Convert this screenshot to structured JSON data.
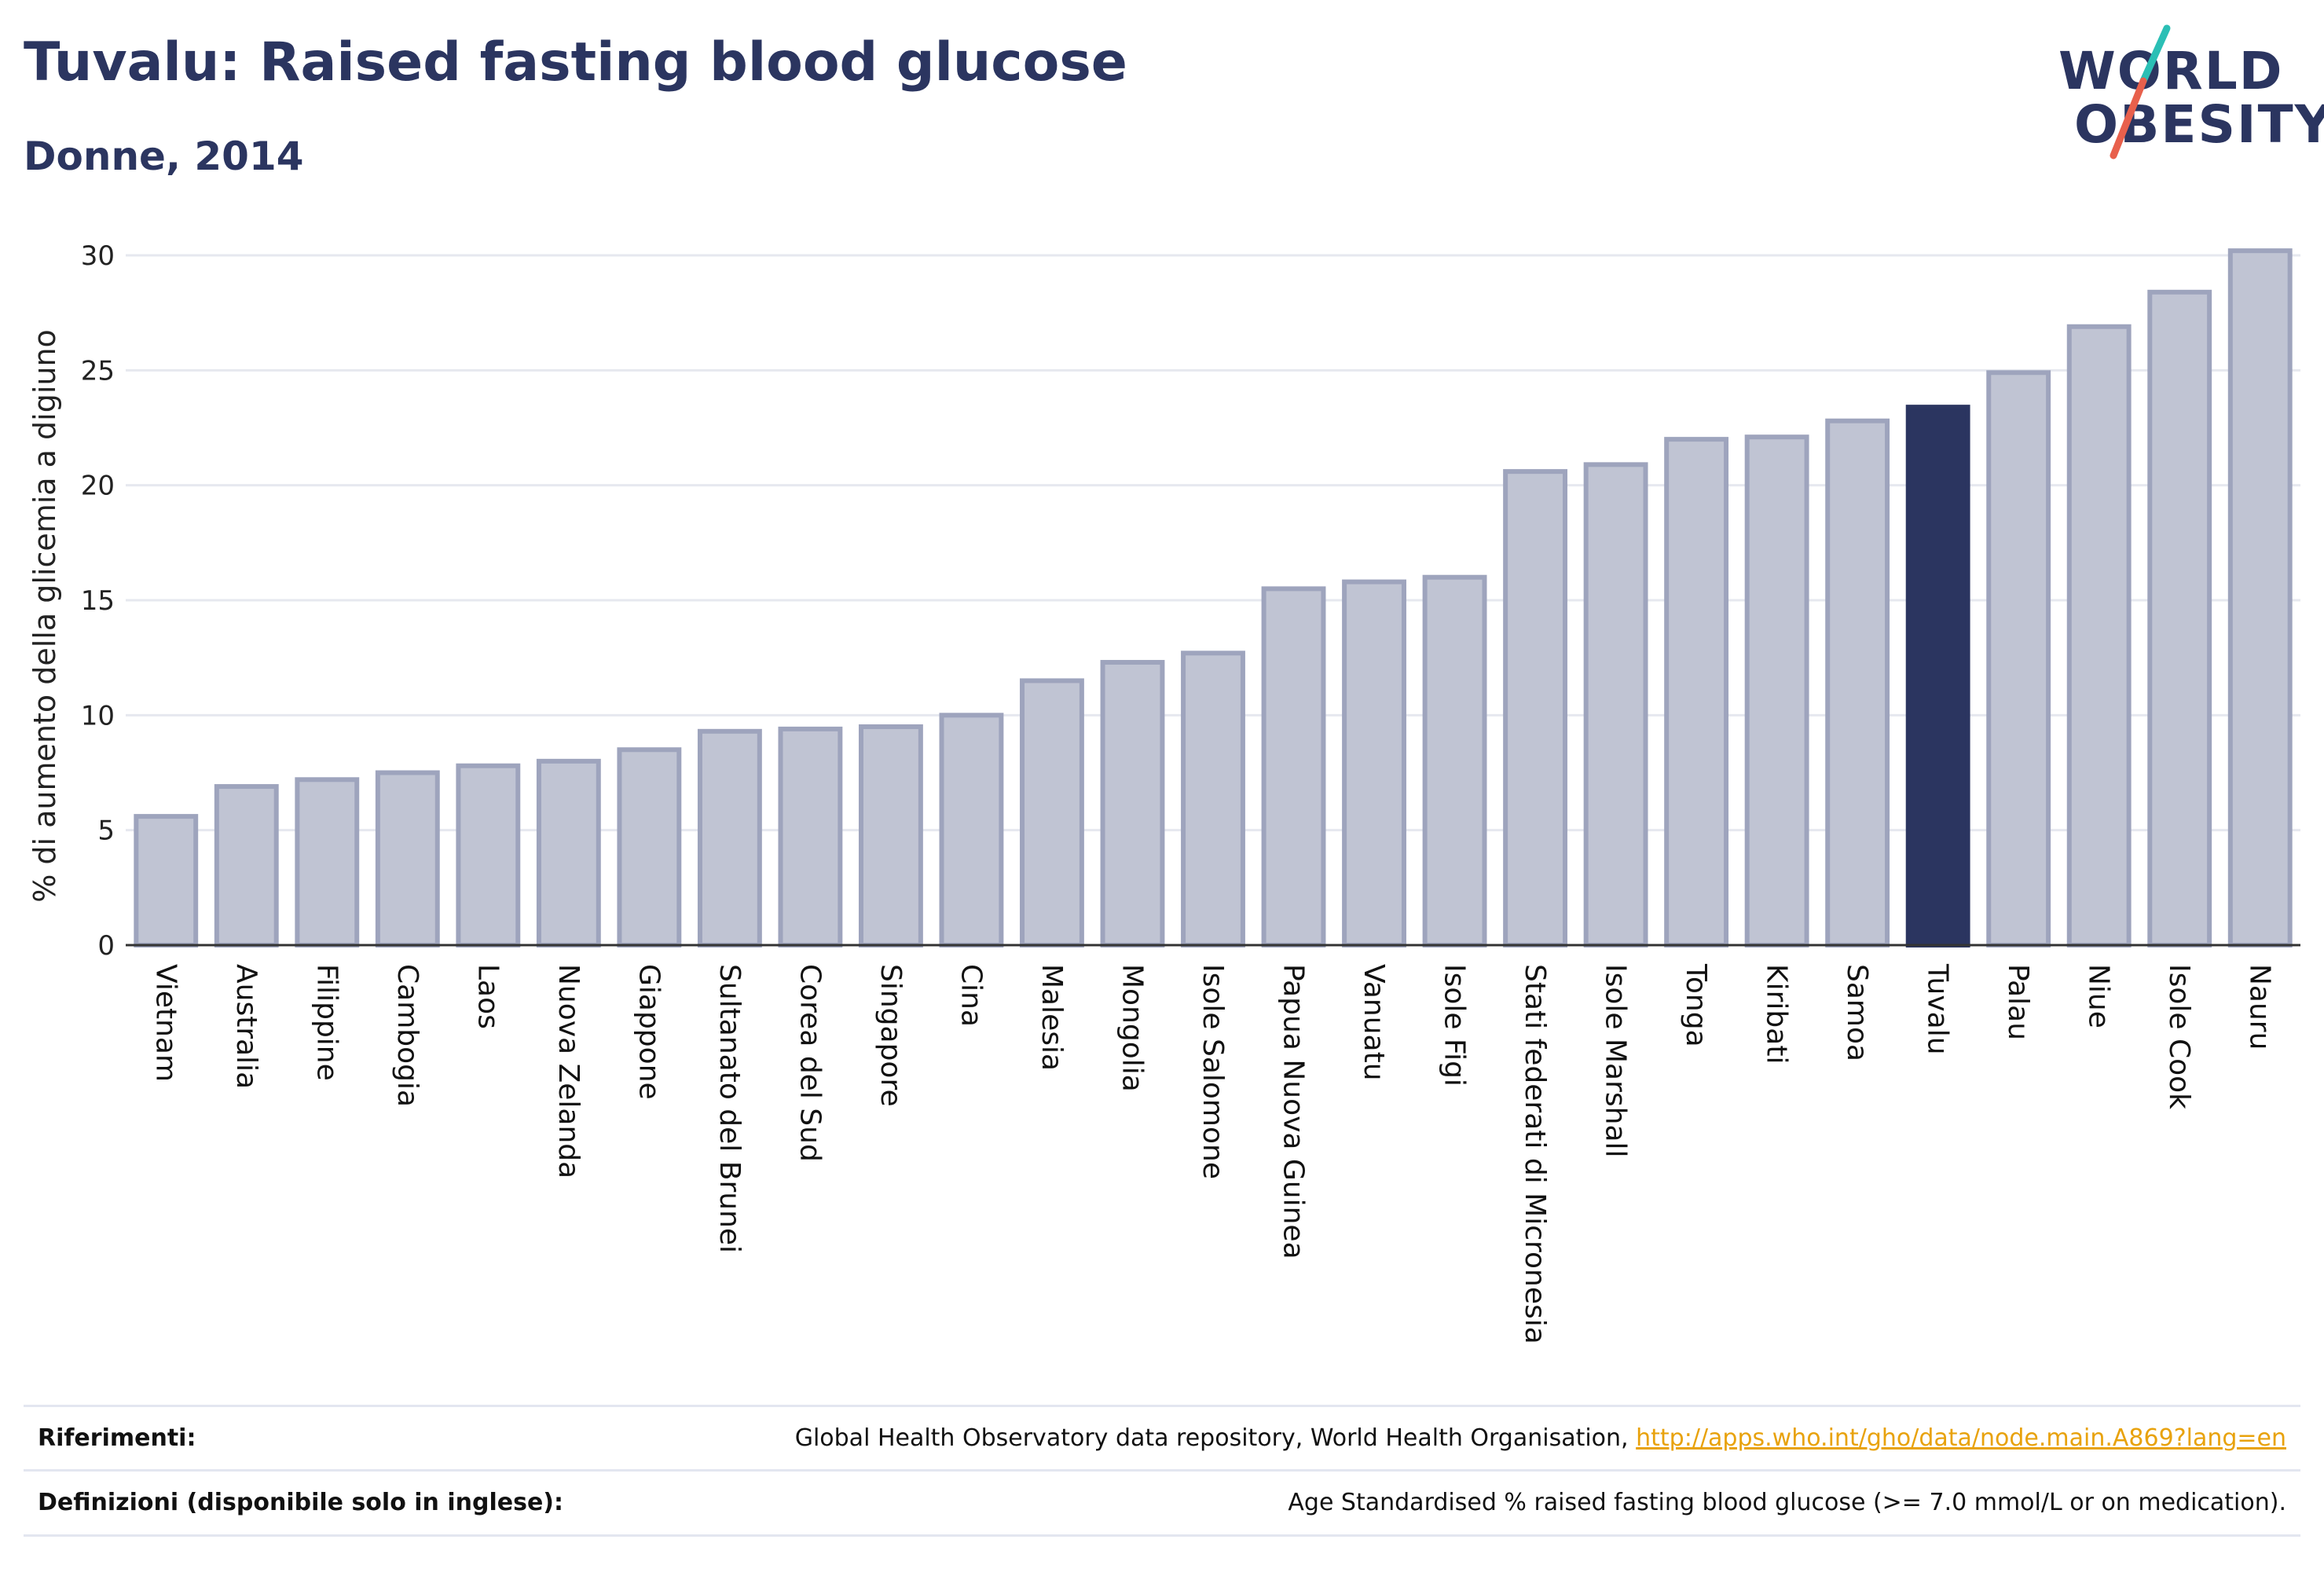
{
  "header": {
    "title": "Tuvalu: Raised fasting blood glucose",
    "subtitle": "Donne, 2014"
  },
  "logo": {
    "line1": "WORLD",
    "line2": "OBESITY",
    "colors": {
      "text": "#2b3560",
      "slash_top": "#2bbfb5",
      "slash_bottom": "#e8604c"
    }
  },
  "chart_data": {
    "type": "bar",
    "ylabel": "% di aumento della glicemia a digiuno",
    "xlabel": "",
    "ylim": [
      0,
      30
    ],
    "yticks": [
      0,
      5,
      10,
      15,
      20,
      25,
      30
    ],
    "grid": true,
    "highlight": "Tuvalu",
    "colors": {
      "bar": "#c0c4d3",
      "bar_stroke": "#9ea4bd",
      "highlight": "#2b3560",
      "grid": "#e6e8ef",
      "axis": "#333333"
    },
    "categories": [
      "Vietnam",
      "Australia",
      "Filippine",
      "Cambogia",
      "Laos",
      "Nuova Zelanda",
      "Giappone",
      "Sultanato del Brunei",
      "Corea del Sud",
      "Singapore",
      "Cina",
      "Malesia",
      "Mongolia",
      "Isole Salomone",
      "Papua Nuova Guinea",
      "Vanuatu",
      "Isole Figi",
      "Stati federati di Micronesia",
      "Isole Marshall",
      "Tonga",
      "Kiribati",
      "Samoa",
      "Tuvalu",
      "Palau",
      "Niue",
      "Isole Cook",
      "Nauru"
    ],
    "values": [
      5.6,
      6.9,
      7.2,
      7.5,
      7.8,
      8.0,
      8.5,
      9.3,
      9.4,
      9.5,
      10.0,
      11.5,
      12.3,
      12.7,
      15.5,
      15.8,
      16.0,
      20.6,
      20.9,
      22.0,
      22.1,
      22.8,
      23.4,
      24.9,
      26.9,
      28.4,
      30.2
    ]
  },
  "footer": {
    "references_label": "Riferimenti:",
    "references_text": "Global Health Observatory data repository, World Health Organisation,",
    "references_link": "http://apps.who.int/gho/data/node.main.A869?lang=en",
    "definitions_label": "Definizioni (disponibile solo in inglese):",
    "definitions_text": "Age Standardised % raised fasting blood glucose (>= 7.0 mmol/L or on medication)."
  }
}
